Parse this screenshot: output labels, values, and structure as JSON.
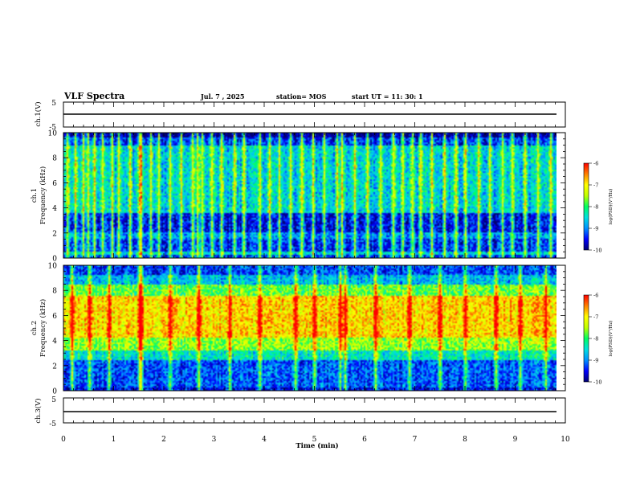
{
  "header": {
    "title": "VLF Spectra",
    "date": "Jul. 7 , 2025",
    "station": "station= MOS",
    "start": "start UT = 11: 30: 1"
  },
  "colors": {
    "colormap": [
      "#000070",
      "#0000ff",
      "#0090ff",
      "#00e0e0",
      "#00ff60",
      "#c0ff00",
      "#ffff00",
      "#ff8000",
      "#ff0000",
      "#ff8c8c",
      "#ffffff"
    ]
  },
  "chart_data": [
    {
      "type": "line",
      "name": "ch1-waveform",
      "ylabel": "ch.1(V)",
      "ylim": [
        -5,
        5
      ],
      "yticks": [
        "5",
        "-5"
      ],
      "x": [
        0,
        10
      ],
      "y": [
        -0.5,
        -0.5
      ],
      "xlim": [
        0,
        10
      ]
    },
    {
      "type": "heatmap",
      "name": "ch1-spectrogram",
      "ylabel": "ch.1\nFrequency (kHz)",
      "ylabel_lines": [
        "ch.1",
        "Frequency (kHz)"
      ],
      "ylim": [
        0,
        10
      ],
      "yticks": [
        "0",
        "2",
        "4",
        "6",
        "8",
        "10"
      ],
      "xlim": [
        0,
        9.8
      ],
      "colorbar": {
        "label": "log(PSD)(V²/Hz)",
        "range": [
          -10,
          -6
        ],
        "ticks": [
          "-6",
          "-7",
          "-8",
          "-9",
          "-10"
        ]
      },
      "background_level": -9.6,
      "bands": [
        {
          "f_low": 0.0,
          "f_high": 0.3,
          "level": -9.3
        },
        {
          "f_low": 0.3,
          "f_high": 0.5,
          "level": -8.6
        },
        {
          "f_low": 0.5,
          "f_high": 1.6,
          "level": -9.4
        },
        {
          "f_low": 1.6,
          "f_high": 2.0,
          "level": -9.0
        },
        {
          "f_low": 2.0,
          "f_high": 3.6,
          "level": -9.6
        },
        {
          "f_low": 3.6,
          "f_high": 9.0,
          "level": -8.6
        },
        {
          "f_low": 9.0,
          "f_high": 9.6,
          "level": -9.4
        },
        {
          "f_low": 9.6,
          "f_high": 10.0,
          "level": -10.0
        }
      ],
      "spike_times": [
        0.05,
        0.22,
        0.38,
        0.47,
        0.62,
        0.78,
        0.95,
        1.1,
        1.3,
        1.5,
        1.55,
        1.72,
        1.9,
        2.1,
        2.35,
        2.55,
        2.65,
        2.75,
        2.95,
        3.15,
        3.4,
        3.6,
        3.9,
        4.1,
        4.3,
        4.5,
        4.75,
        4.95,
        5.2,
        5.45,
        5.55,
        5.8,
        6.05,
        6.3,
        6.55,
        6.75,
        6.95,
        7.1,
        7.35,
        7.6,
        7.8,
        8.0,
        8.25,
        8.5,
        8.75,
        8.95,
        9.2,
        9.45,
        9.7
      ],
      "spike_level": -7.6
    },
    {
      "type": "heatmap",
      "name": "ch2-spectrogram",
      "ylabel": "ch.2\nFrequency (kHz)",
      "ylabel_lines": [
        "ch.2",
        "Frequency (kHz)"
      ],
      "ylim": [
        0,
        10
      ],
      "yticks": [
        "0",
        "2",
        "4",
        "6",
        "8",
        "10"
      ],
      "xlim": [
        0,
        9.8
      ],
      "colorbar": {
        "label": "log(PSD)(V²/Hz)",
        "range": [
          -10,
          -6
        ],
        "ticks": [
          "-6",
          "-7",
          "-8",
          "-9",
          "-10"
        ]
      },
      "background_level": -9.0,
      "bands": [
        {
          "f_low": 0.0,
          "f_high": 0.2,
          "level": -9.6
        },
        {
          "f_low": 0.2,
          "f_high": 2.4,
          "level": -9.2
        },
        {
          "f_low": 2.4,
          "f_high": 3.2,
          "level": -8.4
        },
        {
          "f_low": 3.2,
          "f_high": 4.2,
          "level": -7.6
        },
        {
          "f_low": 4.2,
          "f_high": 7.6,
          "level": -6.9
        },
        {
          "f_low": 7.6,
          "f_high": 8.4,
          "level": -7.8
        },
        {
          "f_low": 8.4,
          "f_high": 9.2,
          "level": -8.7
        },
        {
          "f_low": 9.2,
          "f_high": 10.0,
          "level": -9.3
        }
      ],
      "spike_times": [
        0.15,
        0.5,
        0.9,
        1.5,
        1.55,
        2.1,
        2.7,
        3.3,
        3.9,
        4.6,
        5.0,
        5.5,
        5.6,
        6.2,
        6.9,
        7.5,
        8.0,
        8.6,
        9.1,
        9.6
      ],
      "spike_level": -8.0
    },
    {
      "type": "line",
      "name": "ch3-waveform",
      "ylabel": "ch.3(V)",
      "ylim": [
        -5,
        5
      ],
      "yticks": [
        "5",
        "-5"
      ],
      "x": [
        0,
        10
      ],
      "y": [
        -0.5,
        -0.5
      ],
      "xlim": [
        0,
        10
      ],
      "xlabel": "Time (min)",
      "xticks": [
        "0",
        "1",
        "2",
        "3",
        "4",
        "5",
        "6",
        "7",
        "8",
        "9",
        "10"
      ]
    }
  ]
}
